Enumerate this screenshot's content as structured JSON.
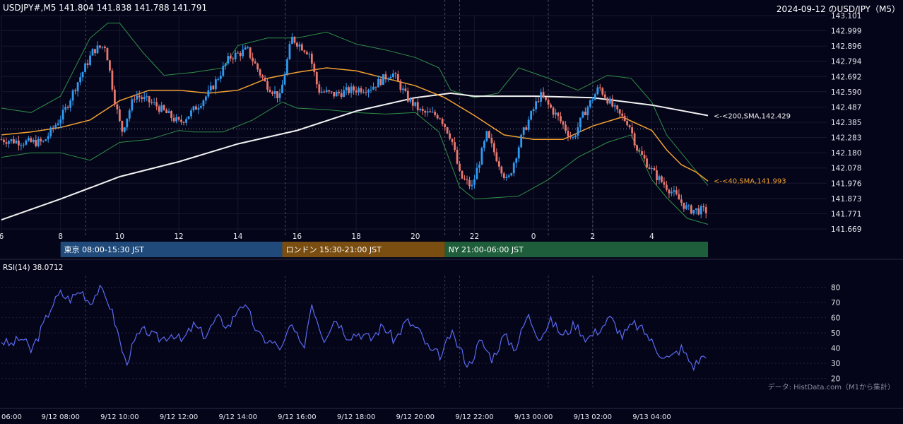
{
  "header": {
    "symbol_line": "USDJPY#,M5 141.804 141.838 141.788 141.791",
    "title": "2024-09-12 のUSD/JPY（M5）"
  },
  "sessions": [
    {
      "label": "東京 08:00-15:30 JST",
      "color": "#1f4a7a"
    },
    {
      "label": "ロンドン 15:30-21:00 JST",
      "color": "#7a4d10"
    },
    {
      "label": "NY 21:00-06:00 JST",
      "color": "#1f5e3a"
    }
  ],
  "rsi_label": "RSI(14) 38.0712",
  "credit": "データ: HistData.com（M1から集計）",
  "colors": {
    "background": "#05051a",
    "up": "#2f9bf0",
    "down": "#e8786e",
    "sma40": "#f0a030",
    "sma200": "#f2f2f2",
    "bollinger": "#2f8f46",
    "rsi": "#5a6af0"
  },
  "chart_data": [
    {
      "type": "candlestick",
      "timeframe": "M5",
      "y_ticks": [
        "143.101",
        "142.999",
        "142.896",
        "142.794",
        "142.692",
        "142.590",
        "142.487",
        "142.385",
        "142.283",
        "142.180",
        "142.078",
        "141.976",
        "141.873",
        "141.771",
        "141.669"
      ],
      "ylim": [
        141.669,
        143.101
      ],
      "x_ticks": [
        "6",
        "8",
        "10",
        "12",
        "14",
        "16",
        "18",
        "20",
        "22",
        "0",
        "2",
        "4"
      ],
      "x_tick_hours": [
        6,
        8,
        10,
        12,
        14,
        16,
        18,
        20,
        22,
        24,
        26,
        28
      ],
      "xlim_hours": [
        6,
        29.9
      ],
      "candle_path_hours": [
        6.0,
        7.0,
        7.5,
        8.2,
        8.6,
        9.2,
        9.6,
        9.9,
        10.15,
        10.6,
        11.3,
        12.1,
        12.5,
        13.1,
        13.8,
        14.4,
        15.0,
        15.5,
        15.9,
        16.5,
        16.8,
        17.3,
        17.9,
        18.6,
        19.3,
        19.8,
        20.3,
        20.9,
        21.3,
        21.6,
        22.0,
        22.5,
        23.2,
        23.7,
        24.3,
        24.9,
        25.4,
        25.8,
        26.3,
        26.9,
        27.3,
        27.6,
        28.2,
        28.8,
        29.3,
        29.9
      ],
      "candle_path_prices": [
        142.27,
        142.25,
        142.25,
        142.45,
        142.63,
        142.87,
        142.9,
        142.55,
        142.32,
        142.57,
        142.5,
        142.38,
        142.45,
        142.58,
        142.82,
        142.87,
        142.65,
        142.55,
        142.95,
        142.85,
        142.6,
        142.57,
        142.6,
        142.62,
        142.72,
        142.55,
        142.45,
        142.43,
        142.28,
        142.02,
        141.95,
        142.3,
        141.98,
        142.3,
        142.57,
        142.42,
        142.27,
        142.45,
        142.62,
        142.45,
        142.38,
        142.2,
        142.03,
        141.91,
        141.8,
        141.79
      ],
      "sma200_hours": [
        6,
        8,
        10,
        12,
        14,
        16,
        18,
        20,
        21.2,
        22,
        24,
        26,
        28,
        29.9
      ],
      "sma200_values": [
        141.73,
        141.87,
        142.02,
        142.12,
        142.24,
        142.33,
        142.46,
        142.55,
        142.58,
        142.56,
        142.56,
        142.55,
        142.5,
        142.43
      ],
      "sma40_hours": [
        6,
        7,
        8,
        9,
        10,
        11,
        12,
        13,
        14,
        15,
        16,
        17,
        18,
        19,
        20,
        21,
        22,
        23,
        24,
        25,
        26,
        27,
        28,
        28.5,
        29,
        29.5,
        29.9
      ],
      "sma40_values": [
        142.3,
        142.32,
        142.35,
        142.4,
        142.53,
        142.6,
        142.6,
        142.58,
        142.6,
        142.68,
        142.72,
        142.75,
        142.73,
        142.68,
        142.63,
        142.55,
        142.43,
        142.3,
        142.27,
        142.27,
        142.36,
        142.42,
        142.33,
        142.2,
        142.1,
        142.05,
        141.99
      ],
      "bb_upper_hours": [
        6,
        7,
        8,
        9,
        9.6,
        10,
        10.8,
        11.5,
        12.5,
        13.5,
        14,
        15,
        16,
        17,
        18,
        19,
        20,
        20.8,
        21.2,
        22,
        22.8,
        23.5,
        24.5,
        25.5,
        26.5,
        27.3,
        28,
        28.5,
        29.9
      ],
      "bb_upper_values": [
        142.48,
        142.45,
        142.56,
        142.95,
        143.05,
        143.05,
        142.85,
        142.7,
        142.72,
        142.75,
        142.9,
        142.95,
        142.95,
        142.99,
        142.91,
        142.87,
        142.82,
        142.75,
        142.6,
        142.55,
        142.58,
        142.75,
        142.68,
        142.6,
        142.7,
        142.68,
        142.52,
        142.3,
        141.96
      ],
      "bb_lower_hours": [
        6,
        7,
        8,
        9,
        10,
        11,
        12,
        12.5,
        13.5,
        14.5,
        15.5,
        16,
        17,
        18,
        19,
        20,
        20.8,
        21.5,
        22,
        22.8,
        23.5,
        24.5,
        25.5,
        26.5,
        27.3,
        28,
        28.5,
        29.2,
        29.9
      ],
      "bb_lower_values": [
        142.15,
        142.18,
        142.18,
        142.13,
        142.25,
        142.27,
        142.33,
        142.32,
        142.32,
        142.4,
        142.52,
        142.48,
        142.47,
        142.45,
        142.44,
        142.45,
        142.32,
        141.95,
        141.87,
        141.88,
        141.89,
        142.0,
        142.15,
        142.25,
        142.3,
        142.0,
        141.88,
        141.74,
        141.7
      ],
      "reference_price": 142.34,
      "vertical_marks_hours": [
        8.85,
        15.6,
        21.0,
        21.5,
        24.5,
        26.0
      ],
      "annotations": [
        {
          "text": "<-<200,SMA,142.429",
          "value": 142.429,
          "color": "#f2f2f2"
        },
        {
          "text": "<-<40,SMA,141.993",
          "value": 141.993,
          "color": "#f0a030"
        }
      ],
      "sessions_hours": [
        [
          8,
          15.5
        ],
        [
          15.5,
          21
        ],
        [
          21,
          30
        ]
      ]
    },
    {
      "type": "line",
      "title": "RSI(14) 38.0712",
      "y_ticks": [
        20,
        30,
        40,
        50,
        60,
        70,
        80
      ],
      "ylim": [
        18,
        84
      ],
      "rsi_hours": [
        6.0,
        6.3,
        6.7,
        7.0,
        7.3,
        7.7,
        8.0,
        8.3,
        8.7,
        9.0,
        9.3,
        9.6,
        9.8,
        10.2,
        10.6,
        10.9,
        11.1,
        11.4,
        11.8,
        12.1,
        12.5,
        12.9,
        13.3,
        13.7,
        14.1,
        14.4,
        14.7,
        15.1,
        15.5,
        15.8,
        16.2,
        16.5,
        16.9,
        17.3,
        17.7,
        18.1,
        18.5,
        18.9,
        19.3,
        19.7,
        20.1,
        20.5,
        20.9,
        21.2,
        21.5,
        21.8,
        22.2,
        22.6,
        23.0,
        23.4,
        23.8,
        24.2,
        24.6,
        25.0,
        25.4,
        25.8,
        26.2,
        26.6,
        27.0,
        27.4,
        27.8,
        28.2,
        28.6,
        29.0,
        29.4,
        29.9
      ],
      "rsi_values": [
        45,
        42,
        47,
        38,
        50,
        68,
        76,
        72,
        78,
        70,
        79,
        72,
        60,
        30,
        48,
        52,
        48,
        46,
        50,
        44,
        55,
        48,
        60,
        54,
        70,
        62,
        48,
        44,
        40,
        56,
        38,
        70,
        46,
        60,
        48,
        50,
        46,
        55,
        45,
        58,
        52,
        38,
        35,
        50,
        40,
        28,
        45,
        33,
        48,
        40,
        62,
        47,
        58,
        48,
        56,
        46,
        52,
        60,
        48,
        56,
        50,
        38,
        33,
        40,
        28,
        38
      ],
      "vertical_marks_hours": [
        8.85,
        15.6,
        21.0,
        21.5,
        24.5,
        26.0
      ]
    }
  ],
  "time_axis": {
    "labels": [
      "06:00",
      "9/12 08:00",
      "9/12 10:00",
      "9/12 12:00",
      "9/12 14:00",
      "9/12 16:00",
      "9/12 18:00",
      "9/12 20:00",
      "9/12 22:00",
      "9/13 00:00",
      "9/13 02:00",
      "9/13 04:00"
    ],
    "hours": [
      6,
      8,
      10,
      12,
      14,
      16,
      18,
      20,
      22,
      24,
      26,
      28
    ]
  }
}
